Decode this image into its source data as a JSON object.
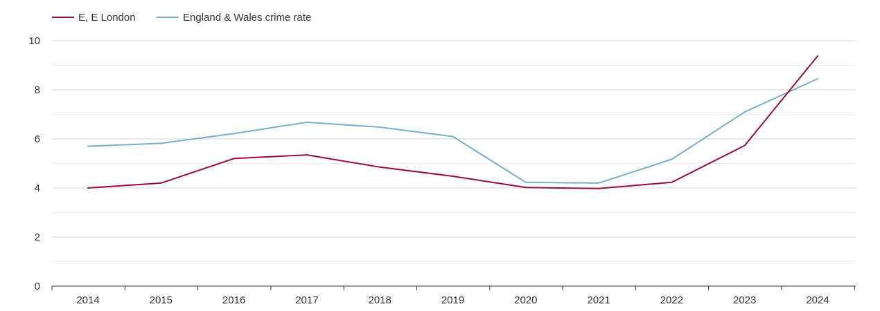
{
  "chart_data": {
    "type": "line",
    "title": "",
    "xlabel": "",
    "ylabel": "",
    "categories": [
      "2014",
      "2015",
      "2016",
      "2017",
      "2018",
      "2019",
      "2020",
      "2021",
      "2022",
      "2023",
      "2024"
    ],
    "ylim": [
      0,
      10
    ],
    "yticks": [
      0,
      2,
      4,
      6,
      8,
      10
    ],
    "yticks_labels": [
      "0",
      "2",
      "4",
      "6",
      "8",
      "10"
    ],
    "grid": true,
    "legend_position": "top-left",
    "series": [
      {
        "name": "E, E London",
        "color": "#9b0c35",
        "values": [
          4.0,
          4.2,
          5.2,
          5.35,
          4.85,
          4.48,
          4.02,
          3.98,
          4.23,
          5.73,
          9.38
        ]
      },
      {
        "name": "England & Wales crime rate",
        "color": "#77aed0",
        "values": [
          5.7,
          5.82,
          6.22,
          6.68,
          6.48,
          6.1,
          4.23,
          4.2,
          5.17,
          7.1,
          8.45
        ]
      }
    ]
  }
}
